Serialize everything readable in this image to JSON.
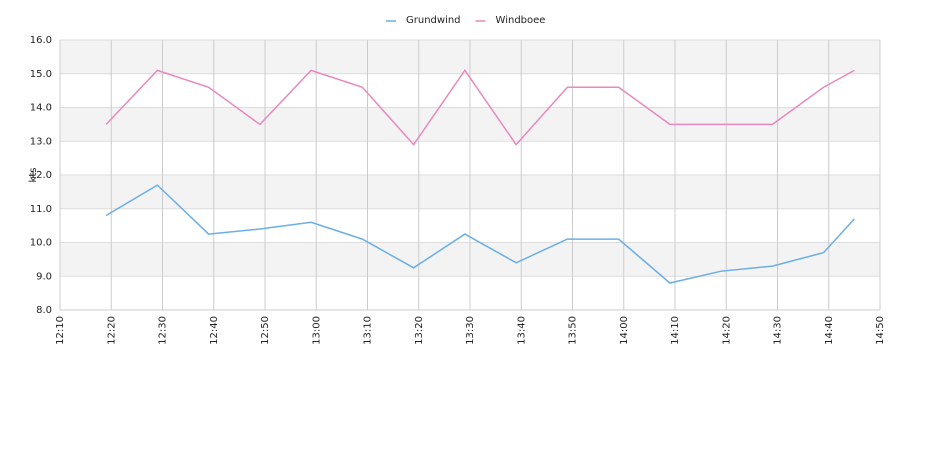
{
  "chart_data": {
    "type": "line",
    "y_label": "kts",
    "x": [
      "12:19",
      "12:29",
      "12:39",
      "12:49",
      "12:59",
      "13:09",
      "13:19",
      "13:29",
      "13:39",
      "13:49",
      "13:59",
      "14:09",
      "14:19",
      "14:29",
      "14:39",
      "14:45"
    ],
    "series": [
      {
        "name": "Grundwind",
        "color": "#6aaee8",
        "values": [
          10.8,
          11.7,
          10.25,
          10.4,
          10.6,
          10.1,
          9.25,
          10.25,
          9.4,
          10.1,
          10.1,
          8.8,
          9.15,
          9.3,
          9.7,
          10.7
        ]
      },
      {
        "name": "Windboee",
        "color": "#e889bf",
        "values": [
          13.5,
          15.1,
          14.6,
          13.5,
          15.1,
          14.6,
          12.9,
          15.1,
          12.9,
          14.6,
          14.6,
          13.5,
          13.5,
          13.5,
          14.6,
          15.1
        ]
      }
    ],
    "xlim": [
      "12:10",
      "14:50"
    ],
    "xticks": [
      "12:10",
      "12:20",
      "12:30",
      "12:40",
      "12:50",
      "13:00",
      "13:10",
      "13:20",
      "13:30",
      "13:40",
      "13:50",
      "14:00",
      "14:10",
      "14:20",
      "14:30",
      "14:40",
      "14:50"
    ],
    "ylim": [
      8,
      16
    ],
    "yticks": [
      {
        "value": 8,
        "label": "8.0"
      },
      {
        "value": 9,
        "label": "9.0"
      },
      {
        "value": 10,
        "label": "10.0"
      },
      {
        "value": 11,
        "label": "11.0"
      },
      {
        "value": 12,
        "label": "12.0"
      },
      {
        "value": 13,
        "label": "13.0"
      },
      {
        "value": 14,
        "label": "14.0"
      },
      {
        "value": 15,
        "label": "15.0"
      },
      {
        "value": 16,
        "label": "16.0"
      }
    ],
    "grid": true,
    "legend": "top"
  }
}
